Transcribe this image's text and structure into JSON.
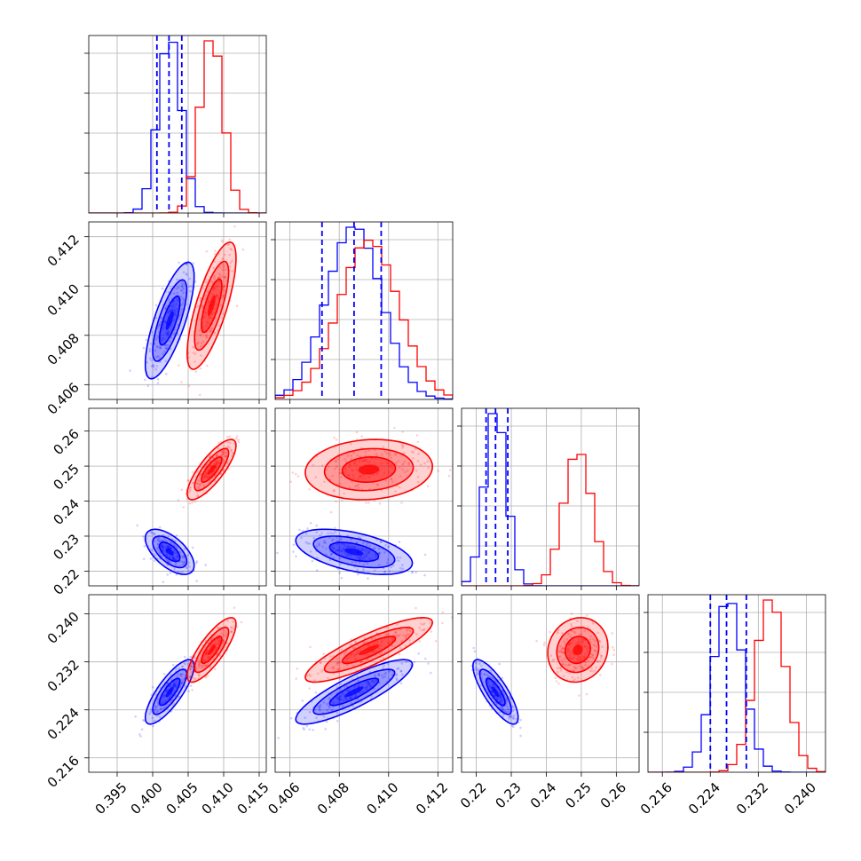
{
  "chart_data": {
    "type": "corner",
    "title": "",
    "parameters": [
      "",
      "",
      "",
      ""
    ],
    "grid": true,
    "legend": "none",
    "series": [
      {
        "color": "#0000ff",
        "style": "histogram + 2D density contours",
        "mean": [
          0.4024,
          0.4086,
          0.2255,
          0.227
        ],
        "std": [
          0.0016,
          0.0011,
          0.003,
          0.0025
        ],
        "quantiles_16_50_84": [
          [
            0.4006,
            0.4023,
            0.4041
          ],
          [
            0.4073,
            0.4086,
            0.4097
          ],
          [
            0.2228,
            0.2255,
            0.229
          ],
          [
            0.224,
            0.2267,
            0.23
          ]
        ]
      },
      {
        "color": "#ff0000",
        "style": "histogram + 2D density contours",
        "mean": [
          0.4083,
          0.4092,
          0.249,
          0.234
        ],
        "std": [
          0.0016,
          0.0012,
          0.004,
          0.0025
        ]
      }
    ],
    "correlations": {
      "blue": {
        "p1_p2": 0.75,
        "p1_p3": -0.6,
        "p1_p4": 0.8,
        "p2_p3": -0.5,
        "p2_p4": 0.85,
        "p3_p4": -0.8
      },
      "red": {
        "p1_p2": 0.75,
        "p1_p3": 0.8,
        "p1_p4": 0.8,
        "p2_p3": 0.1,
        "p2_p4": 0.85,
        "p3_p4": 0.1
      }
    },
    "ranges": [
      [
        0.391,
        0.416
      ],
      [
        0.4054,
        0.4126
      ],
      [
        0.2158,
        0.2665
      ],
      [
        0.2136,
        0.2432
      ]
    ],
    "x_ticks": [
      {
        "values": [
          0.395,
          0.4,
          0.405,
          0.41,
          0.415
        ],
        "labels": [
          "0.395",
          "0.400",
          "0.405",
          "0.410",
          "0.415"
        ]
      },
      {
        "values": [
          0.406,
          0.408,
          0.41,
          0.412
        ],
        "labels": [
          "0.406",
          "0.408",
          "0.410",
          "0.412"
        ]
      },
      {
        "values": [
          0.22,
          0.23,
          0.24,
          0.25,
          0.26
        ],
        "labels": [
          "0.22",
          "0.23",
          "0.24",
          "0.25",
          "0.26"
        ]
      },
      {
        "values": [
          0.216,
          0.224,
          0.232,
          0.24
        ],
        "labels": [
          "0.216",
          "0.224",
          "0.232",
          "0.240"
        ]
      }
    ],
    "y_ticks": [
      null,
      {
        "values": [
          0.406,
          0.408,
          0.41,
          0.412
        ],
        "labels": [
          "0.406",
          "0.408",
          "0.410",
          "0.412"
        ]
      },
      {
        "values": [
          0.22,
          0.23,
          0.24,
          0.25,
          0.26
        ],
        "labels": [
          "0.22",
          "0.23",
          "0.24",
          "0.25",
          "0.26"
        ]
      },
      {
        "values": [
          0.216,
          0.224,
          0.232,
          0.24
        ],
        "labels": [
          "0.216",
          "0.224",
          "0.232",
          "0.240"
        ]
      }
    ]
  }
}
